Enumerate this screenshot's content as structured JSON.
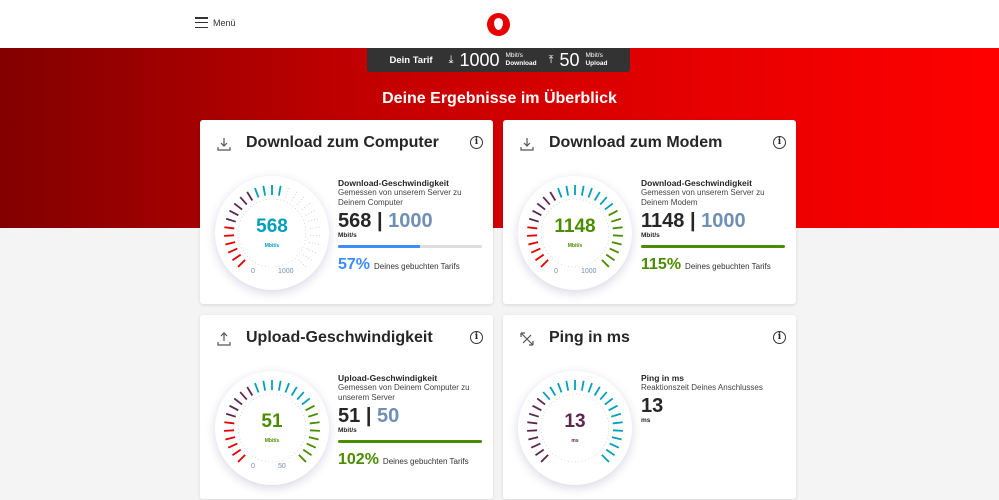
{
  "header": {
    "menu_label": "Menü",
    "logo": "vodafone-logo"
  },
  "tarif": {
    "label": "Dein Tarif",
    "download_value": "1000",
    "download_unit": "Mbit/s",
    "download_label": "Download",
    "upload_value": "50",
    "upload_unit": "Mbit/s",
    "upload_label": "Upload"
  },
  "page_title": "Deine Ergebnisse im Überblick",
  "colors": {
    "red": "#e60000",
    "purple": "#5e2750",
    "teal": "#00a0b8",
    "green": "#4a8c00",
    "blue": "#3c8cff",
    "max_grey": "#6f8fb5"
  },
  "cards": [
    {
      "id": "download-computer",
      "title": "Download zum Computer",
      "icon": "download-icon",
      "gauge_value": "568",
      "gauge_unit": "Mbit/s",
      "gauge_min": "0",
      "gauge_max": "1000",
      "scheme": "download",
      "fraction": 0.57,
      "heading": "Download-Geschwindigkeit",
      "desc": "Gemessen von unserem Server zu Deinem Computer",
      "value": "568",
      "sep": "|",
      "max": "1000",
      "unit": "Mbit/s",
      "progress": 57,
      "percent": "57%",
      "percent_text": "Deines gebuchten Tarifs",
      "accent": "#3c8cff",
      "value_color": "#00a0b8"
    },
    {
      "id": "download-modem",
      "title": "Download zum Modem",
      "icon": "download-icon",
      "gauge_value": "1148",
      "gauge_unit": "Mbit/s",
      "gauge_min": "0",
      "gauge_max": "1000",
      "scheme": "download",
      "fraction": 1,
      "heading": "Download-Geschwindigkeit",
      "desc": "Gemessen von unserem Server zu Deinem Modem",
      "value": "1148",
      "sep": "|",
      "max": "1000",
      "unit": "Mbit/s",
      "progress": 100,
      "percent": "115%",
      "percent_text": "Deines gebuchten Tarifs",
      "accent": "#4a8c00",
      "value_color": "#4a8c00"
    },
    {
      "id": "upload",
      "title": "Upload-Geschwindigkeit",
      "icon": "upload-icon",
      "gauge_value": "51",
      "gauge_unit": "Mbit/s",
      "gauge_min": "0",
      "gauge_max": "50",
      "scheme": "download",
      "fraction": 1,
      "heading": "Upload-Geschwindigkeit",
      "desc": "Gemessen von Deinem Computer zu unserem Server",
      "value": "51",
      "sep": "|",
      "max": "50",
      "unit": "Mbit/s",
      "progress": 100,
      "percent": "102%",
      "percent_text": "Deines gebuchten Tarifs",
      "accent": "#4a8c00",
      "value_color": "#4a8c00"
    },
    {
      "id": "ping",
      "title": "Ping in ms",
      "icon": "ping-arrows-icon",
      "gauge_value": "13",
      "gauge_unit": "ms",
      "scheme": "ping",
      "fraction": 1,
      "heading": "Ping in ms",
      "desc": "Reaktionszeit Deines Anschlusses",
      "value": "13",
      "unit": "ms",
      "value_color": "#5e2750"
    }
  ]
}
